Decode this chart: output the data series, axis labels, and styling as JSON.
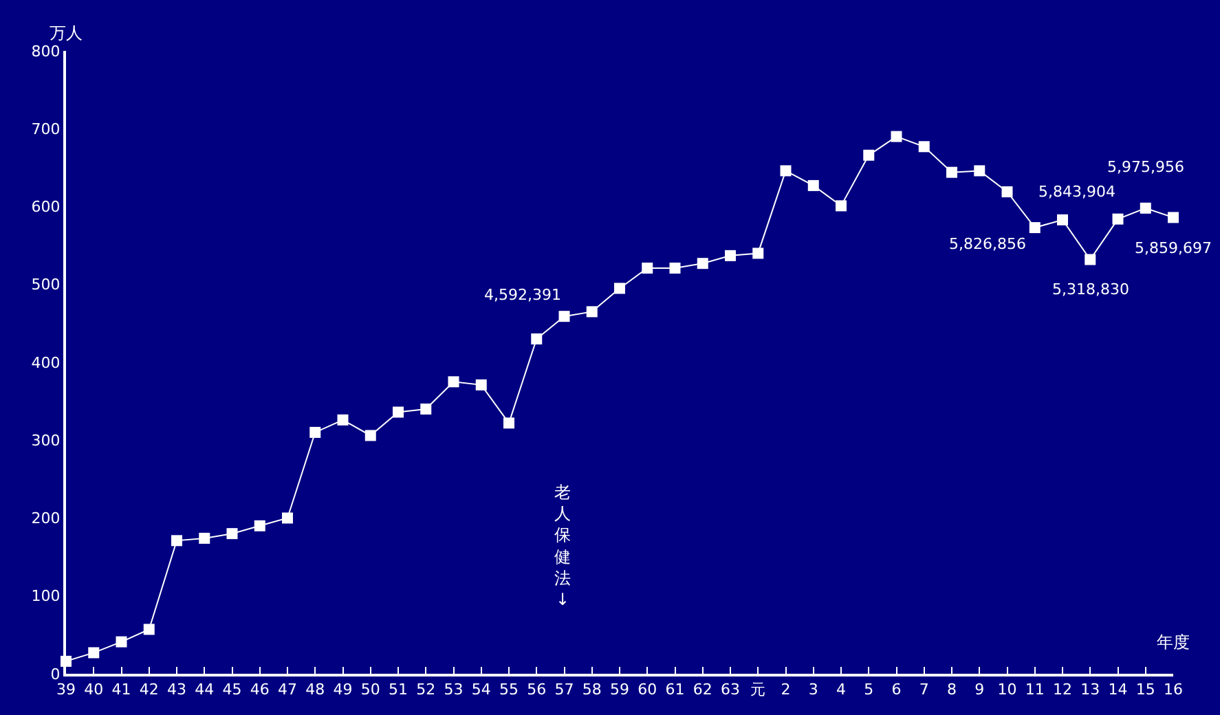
{
  "chart_data": {
    "type": "line",
    "ylabel": "万人",
    "xlabel": "年度",
    "categories": [
      "39",
      "40",
      "41",
      "42",
      "43",
      "44",
      "45",
      "46",
      "47",
      "48",
      "49",
      "50",
      "51",
      "52",
      "53",
      "54",
      "55",
      "56",
      "57",
      "58",
      "59",
      "60",
      "61",
      "62",
      "63",
      "元",
      "2",
      "3",
      "4",
      "5",
      "6",
      "7",
      "8",
      "9",
      "10",
      "11",
      "12",
      "13",
      "14",
      "15",
      "16"
    ],
    "series": [
      {
        "color": "#ffffff",
        "values": [
          16,
          27,
          41,
          57,
          171,
          174,
          180,
          190,
          200,
          310,
          326,
          306,
          336,
          340,
          375,
          371,
          322,
          430,
          459,
          465,
          495,
          521,
          521,
          527,
          537,
          540,
          646,
          627,
          601,
          666,
          690,
          677,
          644,
          646,
          619,
          573,
          583,
          532,
          584,
          598,
          586
        ]
      }
    ],
    "ylim": [
      0,
      800
    ],
    "yticks": [
      0,
      100,
      200,
      300,
      400,
      500,
      600,
      700,
      800
    ],
    "annotations": [
      "老人保健法↓",
      {
        "text": "4,592,391",
        "x": "57",
        "y": 459
      },
      {
        "text": "5,826,856",
        "x": "12",
        "y": 583
      },
      {
        "text": "5,318,830",
        "x": "13",
        "y": 532
      },
      {
        "text": "5,843,904",
        "x": "14",
        "y": 584
      },
      {
        "text": "5,975,956",
        "x": "15",
        "y": 598
      },
      {
        "text": "5,859,697",
        "x": "16",
        "y": 586
      }
    ],
    "marker": "square",
    "line_style": "solid",
    "grid": false,
    "legend": false
  }
}
